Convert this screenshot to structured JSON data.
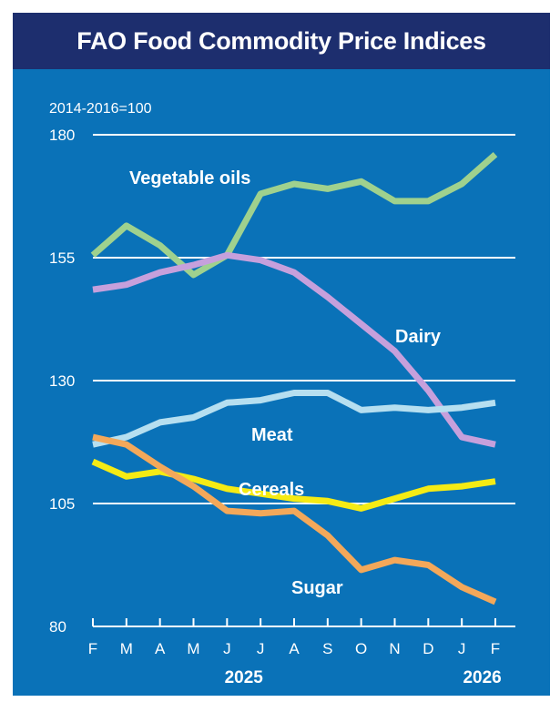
{
  "chart_data": {
    "type": "line",
    "title": "FAO Food Commodity Price Indices",
    "subtitle": "2014-2016=100",
    "categories": [
      "F",
      "M",
      "A",
      "M",
      "J",
      "J",
      "A",
      "S",
      "O",
      "N",
      "D",
      "J",
      "F"
    ],
    "year_labels": [
      "2025",
      "2026"
    ],
    "yticks": [
      80,
      105,
      130,
      155,
      180
    ],
    "ylim": [
      80,
      180
    ],
    "grid": true,
    "series": [
      {
        "name": "Vegetable oils",
        "color": "#9fd18e",
        "values": [
          155.5,
          161.5,
          157.5,
          151.5,
          155.5,
          168.0,
          170.0,
          169.0,
          170.5,
          166.5,
          166.5,
          170.0,
          176.0
        ]
      },
      {
        "name": "Dairy",
        "color": "#c6a0dc",
        "values": [
          148.5,
          149.5,
          152.0,
          153.5,
          155.5,
          154.5,
          152.0,
          147.0,
          141.5,
          136.0,
          128.0,
          118.5,
          117.0
        ]
      },
      {
        "name": "Meat",
        "color": "#b6dff0",
        "values": [
          117.0,
          118.5,
          121.5,
          122.5,
          125.5,
          126.0,
          127.5,
          127.5,
          124.0,
          124.5,
          124.0,
          124.5,
          125.5
        ]
      },
      {
        "name": "Cereals",
        "color": "#f5eb14",
        "values": [
          113.5,
          110.5,
          111.5,
          110.0,
          108.0,
          107.0,
          106.0,
          105.5,
          104.0,
          106.0,
          108.0,
          108.5,
          109.5
        ]
      },
      {
        "name": "Sugar",
        "color": "#f3a85a",
        "values": [
          118.5,
          117.0,
          112.5,
          108.5,
          103.5,
          103.0,
          103.5,
          98.5,
          91.5,
          93.5,
          92.5,
          88.0,
          85.0
        ]
      }
    ]
  },
  "colors": {
    "background": "#0a72b8",
    "title_bar": "#1d2e6e",
    "gridline": "#ffffff",
    "text": "#ffffff"
  }
}
